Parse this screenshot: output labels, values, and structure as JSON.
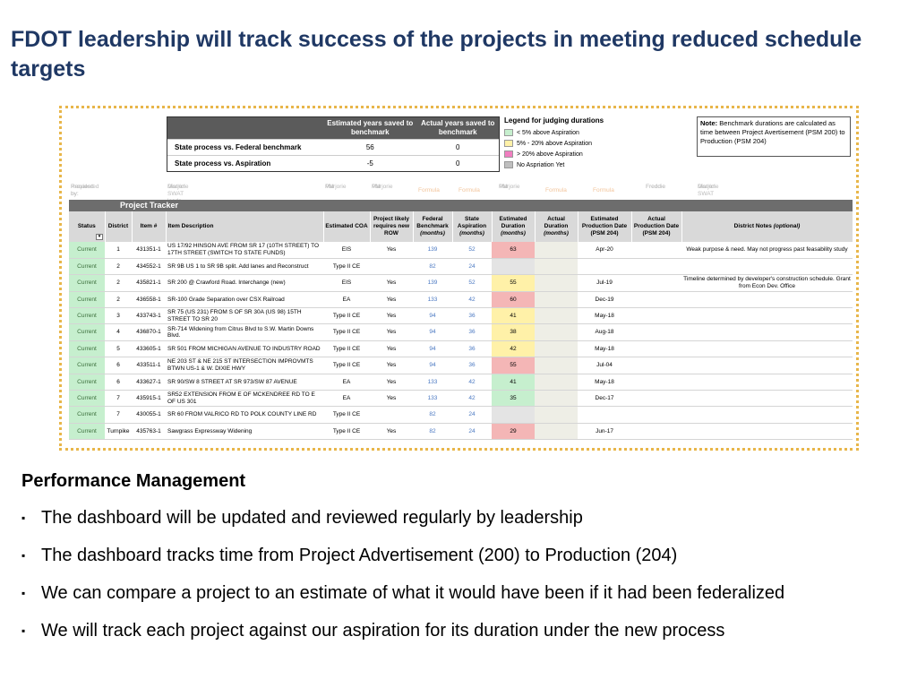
{
  "title": "FDOT leadership will track success of the projects in meeting reduced schedule targets",
  "summary": {
    "col1": "Estimated years saved to benchmark",
    "col2": "Actual years saved to benchmark",
    "rows": [
      {
        "label": "State process vs. Federal benchmark",
        "v1": "56",
        "v2": "0"
      },
      {
        "label": "State process vs. Aspiration",
        "v1": "-5",
        "v2": "0"
      }
    ]
  },
  "legend": {
    "title": "Legend for judging durations",
    "items": [
      {
        "label": "< 5% above Aspiration",
        "color": "#c6efce"
      },
      {
        "label": "5% - 20% above Aspiration",
        "color": "#fff1a8"
      },
      {
        "label": "> 20% above Aspiration",
        "color": "#f07ec0"
      },
      {
        "label": "No Aspriation Yet",
        "color": "#bfbfbf"
      }
    ]
  },
  "note": {
    "label": "Note:",
    "text": "Benchmark durations are calculated as time between Project Avertisement (PSM 200) to Production (PSM 204)"
  },
  "faint_row": {
    "requested_by": "Requested by:",
    "provided_by": "Provided by:",
    "marjorie1": "Marjorie",
    "district_swat": "District SWAT leads",
    "marjorie_pm1": "Marjorie",
    "pm1": "PM",
    "marjorie_pm2": "Marjorie",
    "pm2": "PM",
    "formula1": "Formula",
    "formula2": "Formula",
    "marjorie_pm3": "Marjorie",
    "pm3": "PM",
    "formula3": "Formula",
    "formula4": "Formula",
    "freddie1": "Freddie",
    "freddie2": "Freddie",
    "marjorie_end": "Marjorie",
    "district_swat_end": "District SWAT"
  },
  "tracker_title": "Project Tracker",
  "headers": {
    "status": "Status",
    "district": "District",
    "item": "Item #",
    "desc": "Item Description",
    "coa": "Estimated COA",
    "row_l1": "Project likely",
    "row_l2": "requires new",
    "row_l3": "ROW",
    "fed_l1": "Federal",
    "fed_l2": "Benchmark",
    "fed_unit": "(months)",
    "asp_l1": "State",
    "asp_l2": "Aspiration",
    "asp_unit": "(months)",
    "est_l1": "Estimated",
    "est_l2": "Duration",
    "est_unit": "(months)",
    "act_l1": "Actual",
    "act_l2": "Duration",
    "act_unit": "(months)",
    "epd_l1": "Estimated",
    "epd_l2": "Production Date",
    "epd_unit": "(PSM 204)",
    "apd_l1": "Actual",
    "apd_l2": "Production Date",
    "apd_unit": "(PSM 204)",
    "notes": "District Notes",
    "notes_opt": "(optional)"
  },
  "rows": [
    {
      "status": "Current",
      "district": "1",
      "item": "431351-1",
      "desc": "US 17/92 HINSON AVE FROM SR 17 (10TH STREET) TO 17TH STREET (SWITCH TO STATE FUNDS)",
      "coa": "EIS",
      "row": "Yes",
      "fed": "139",
      "asp": "52",
      "est": "63",
      "est_color": "red",
      "epd": "Apr-20",
      "notes": "Weak purpose & need. May not progress past feasability study"
    },
    {
      "status": "Current",
      "district": "2",
      "item": "434552-1",
      "desc": "SR 9B US 1 to SR 9B split. Add lanes and Reconstruct",
      "coa": "Type II CE",
      "row": "",
      "fed": "82",
      "asp": "24",
      "est": "",
      "est_color": "gry",
      "epd": "",
      "notes": ""
    },
    {
      "status": "Current",
      "district": "2",
      "item": "435821-1",
      "desc": "SR 200 @ Crawford Road. Interchange (new)",
      "coa": "EIS",
      "row": "Yes",
      "fed": "139",
      "asp": "52",
      "est": "55",
      "est_color": "yel",
      "epd": "Jul-19",
      "notes": "Timeline determined by developer's construction schedule. Grant from Econ Dev. Office"
    },
    {
      "status": "Current",
      "district": "2",
      "item": "436558-1",
      "desc": "SR-100 Grade Separation over CSX Railroad",
      "coa": "EA",
      "row": "Yes",
      "fed": "133",
      "asp": "42",
      "est": "60",
      "est_color": "red",
      "epd": "Dec-19",
      "notes": ""
    },
    {
      "status": "Current",
      "district": "3",
      "item": "433743-1",
      "desc": "SR 75 (US 231) FROM S OF SR 30A (US 98) 15TH STREET TO SR 20",
      "coa": "Type II CE",
      "row": "Yes",
      "fed": "94",
      "asp": "36",
      "est": "41",
      "est_color": "yel",
      "epd": "May-18",
      "notes": ""
    },
    {
      "status": "Current",
      "district": "4",
      "item": "436870-1",
      "desc": "SR-714 Widening from Citrus Blvd to S.W. Martin Downs Blvd.",
      "coa": "Type II CE",
      "row": "Yes",
      "fed": "94",
      "asp": "36",
      "est": "38",
      "est_color": "yel",
      "epd": "Aug-18",
      "notes": ""
    },
    {
      "status": "Current",
      "district": "5",
      "item": "433605-1",
      "desc": "SR 501 FROM MICHIGAN AVENUE TO INDUSTRY ROAD",
      "coa": "Type II CE",
      "row": "Yes",
      "fed": "94",
      "asp": "36",
      "est": "42",
      "est_color": "yel",
      "epd": "May-18",
      "notes": ""
    },
    {
      "status": "Current",
      "district": "6",
      "item": "433511-1",
      "desc": "NE 203 ST & NE 215 ST INTERSECTION IMPROVMTS BTWN US-1 & W. DIXIE HWY",
      "coa": "Type II CE",
      "row": "Yes",
      "fed": "94",
      "asp": "36",
      "est": "55",
      "est_color": "red",
      "epd": "Jul-04",
      "notes": ""
    },
    {
      "status": "Current",
      "district": "6",
      "item": "433627-1",
      "desc": "SR 90/SW 8 STREET AT SR 973/SW 87 AVENUE",
      "coa": "EA",
      "row": "Yes",
      "fed": "133",
      "asp": "42",
      "est": "41",
      "est_color": "grn",
      "epd": "May-18",
      "notes": ""
    },
    {
      "status": "Current",
      "district": "7",
      "item": "435915-1",
      "desc": "SR52 EXTENSION FROM E OF MCKENDREE RD TO E OF US 301",
      "coa": "EA",
      "row": "Yes",
      "fed": "133",
      "asp": "42",
      "est": "35",
      "est_color": "grn",
      "epd": "Dec-17",
      "notes": ""
    },
    {
      "status": "Current",
      "district": "7",
      "item": "430055-1",
      "desc": "SR 60 FROM VALRICO RD TO POLK COUNTY LINE RD",
      "coa": "Type II CE",
      "row": "",
      "fed": "82",
      "asp": "24",
      "est": "",
      "est_color": "gry",
      "epd": "",
      "notes": ""
    },
    {
      "status": "Current",
      "district": "Turnpike",
      "item": "435763-1",
      "desc": "Sawgrass Expressway Widening",
      "coa": "Type II CE",
      "row": "Yes",
      "fed": "82",
      "asp": "24",
      "est": "29",
      "est_color": "red",
      "epd": "Jun-17",
      "notes": ""
    }
  ],
  "perf_title": "Performance Management",
  "bullets": [
    "The dashboard will be updated and reviewed regularly by leadership",
    "The dashboard tracks time from Project Advertisement (200) to Production (204)",
    "We can compare a project to an estimate of what it would have been if it had  been federalized",
    "We will track each project against our aspiration for its duration under the new process"
  ],
  "bullet_glyph": "▪"
}
